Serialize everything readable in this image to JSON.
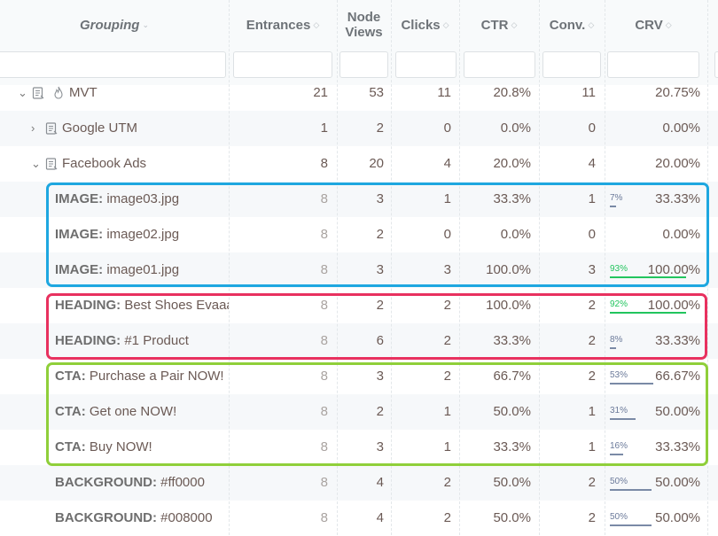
{
  "header": {
    "grouping": "Grouping",
    "entrances": "Entrances",
    "node_views_l1": "Node",
    "node_views_l2": "Views",
    "clicks": "Clicks",
    "ctr": "CTR",
    "conv": "Conv.",
    "crv": "CRV",
    "sort_icon": "◇",
    "grouping_icon": "⌄"
  },
  "rows": [
    {
      "chev": "⌄",
      "label": "MVT",
      "entrances": "21",
      "views": "53",
      "clicks": "11",
      "ctr": "20.8%",
      "conv": "11",
      "crv": "20.75%"
    },
    {
      "chev": "›",
      "label": "Google UTM",
      "entrances": "1",
      "views": "2",
      "clicks": "0",
      "ctr": "0.0%",
      "conv": "0",
      "crv": "0.00%"
    },
    {
      "chev": "⌄",
      "label": "Facebook Ads",
      "entrances": "8",
      "views": "20",
      "clicks": "4",
      "ctr": "20.0%",
      "conv": "4",
      "crv": "20.00%"
    },
    {
      "kind": "IMAGE:",
      "value": " image03.jpg",
      "entrances": "8",
      "views": "3",
      "clicks": "1",
      "ctr": "33.3%",
      "conv": "1",
      "crv": "33.33%",
      "pct_label": "7%",
      "pct": 7,
      "color": "blue"
    },
    {
      "kind": "IMAGE:",
      "value": " image02.jpg",
      "entrances": "8",
      "views": "2",
      "clicks": "0",
      "ctr": "0.0%",
      "conv": "0",
      "crv": "0.00%",
      "pct_label": "",
      "pct": 0,
      "color": "blue"
    },
    {
      "kind": "IMAGE:",
      "value": " image01.jpg",
      "entrances": "8",
      "views": "3",
      "clicks": "3",
      "ctr": "100.0%",
      "conv": "3",
      "crv": "100.00%",
      "pct_label": "93%",
      "pct": 93,
      "color": "green"
    },
    {
      "kind": "HEADING:",
      "value": " Best Shoes Evaaaaa",
      "entrances": "8",
      "views": "2",
      "clicks": "2",
      "ctr": "100.0%",
      "conv": "2",
      "crv": "100.00%",
      "pct_label": "92%",
      "pct": 92,
      "color": "green"
    },
    {
      "kind": "HEADING:",
      "value": " #1 Product",
      "entrances": "8",
      "views": "6",
      "clicks": "2",
      "ctr": "33.3%",
      "conv": "2",
      "crv": "33.33%",
      "pct_label": "8%",
      "pct": 8,
      "color": "blue"
    },
    {
      "kind": "CTA:",
      "value": " Purchase a Pair NOW!",
      "entrances": "8",
      "views": "3",
      "clicks": "2",
      "ctr": "66.7%",
      "conv": "2",
      "crv": "66.67%",
      "pct_label": "53%",
      "pct": 53,
      "color": "blue"
    },
    {
      "kind": "CTA:",
      "value": " Get one NOW!",
      "entrances": "8",
      "views": "2",
      "clicks": "1",
      "ctr": "50.0%",
      "conv": "1",
      "crv": "50.00%",
      "pct_label": "31%",
      "pct": 31,
      "color": "blue"
    },
    {
      "kind": "CTA:",
      "value": " Buy NOW!",
      "entrances": "8",
      "views": "3",
      "clicks": "1",
      "ctr": "33.3%",
      "conv": "1",
      "crv": "33.33%",
      "pct_label": "16%",
      "pct": 16,
      "color": "blue"
    },
    {
      "kind": "BACKGROUND:",
      "value": " #ff0000",
      "entrances": "8",
      "views": "4",
      "clicks": "2",
      "ctr": "50.0%",
      "conv": "2",
      "crv": "50.00%",
      "pct_label": "50%",
      "pct": 50,
      "color": "blue"
    },
    {
      "kind": "BACKGROUND:",
      "value": " #008000",
      "entrances": "8",
      "views": "4",
      "clicks": "2",
      "ctr": "50.0%",
      "conv": "2",
      "crv": "50.00%",
      "pct_label": "50%",
      "pct": 50,
      "color": "blue"
    }
  ],
  "highlights": {
    "image_group_color": "#1ea7e0",
    "heading_group_color": "#e8315f",
    "cta_group_color": "#8fcf3a"
  },
  "colors": {
    "bar_blue": "#7a8aa6",
    "bar_green": "#22c55e"
  }
}
